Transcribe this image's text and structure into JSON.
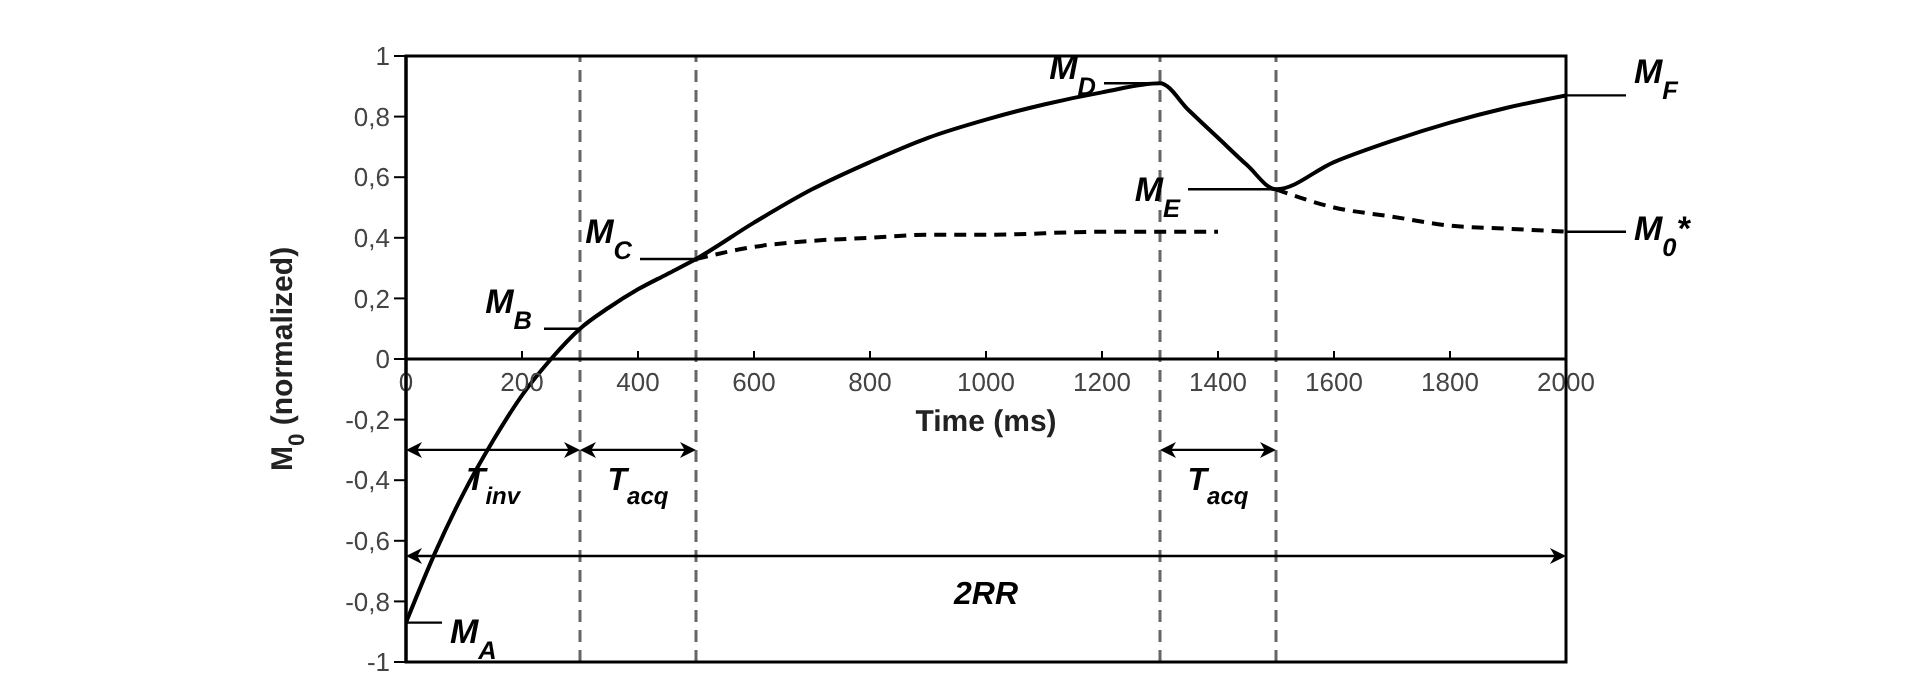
{
  "chart_data": {
    "type": "line",
    "xlabel": "Time (ms)",
    "ylabel": "M$_{0}$ (normalized)",
    "xlim": [
      0,
      2000
    ],
    "ylim": [
      -1,
      1
    ],
    "xticks": [
      0,
      200,
      400,
      600,
      800,
      1000,
      1200,
      1400,
      1600,
      1800,
      2000
    ],
    "yticks": [
      {
        "value": -1,
        "label": "-1"
      },
      {
        "value": -0.8,
        "label": "-0,8"
      },
      {
        "value": -0.6,
        "label": "-0,6"
      },
      {
        "value": -0.4,
        "label": "-0,4"
      },
      {
        "value": -0.2,
        "label": "-0,2"
      },
      {
        "value": 0,
        "label": "0"
      },
      {
        "value": 0.2,
        "label": "0,2"
      },
      {
        "value": 0.4,
        "label": "0,4"
      },
      {
        "value": 0.6,
        "label": "0,6"
      },
      {
        "value": 0.8,
        "label": "0,8"
      },
      {
        "value": 1,
        "label": "1"
      }
    ],
    "marker": "none",
    "series": [
      {
        "color": "#000000",
        "line_style": "solid",
        "x": [
          0,
          50,
          100,
          150,
          200,
          250,
          300,
          350,
          400,
          450,
          500,
          600,
          700,
          800,
          900,
          1000,
          1100,
          1200,
          1300,
          1350,
          1400,
          1450,
          1500,
          1600,
          1700,
          1800,
          1900,
          2000
        ],
        "values": [
          -0.87,
          -0.64,
          -0.44,
          -0.27,
          -0.12,
          0.0,
          0.1,
          0.17,
          0.23,
          0.28,
          0.33,
          0.45,
          0.56,
          0.65,
          0.73,
          0.79,
          0.84,
          0.88,
          0.91,
          0.82,
          0.73,
          0.64,
          0.56,
          0.65,
          0.72,
          0.78,
          0.83,
          0.87
        ]
      },
      {
        "color": "#000000",
        "line_style": "dashed",
        "x": [
          500,
          600,
          700,
          800,
          900,
          1000,
          1200,
          1400
        ],
        "values": [
          0.33,
          0.37,
          0.39,
          0.4,
          0.41,
          0.41,
          0.42,
          0.42
        ]
      },
      {
        "color": "#000000",
        "line_style": "dashed",
        "x": [
          1500,
          1600,
          1700,
          1800,
          1900,
          2000
        ],
        "values": [
          0.56,
          0.5,
          0.47,
          0.44,
          0.43,
          0.42
        ]
      }
    ],
    "ref_lines": [
      {
        "axis": "x",
        "value": 300,
        "color": "#666666",
        "line_style": "dashed"
      },
      {
        "axis": "x",
        "value": 500,
        "color": "#666666",
        "line_style": "dashed"
      },
      {
        "axis": "x",
        "value": 1300,
        "color": "#666666",
        "line_style": "dashed"
      },
      {
        "axis": "x",
        "value": 1500,
        "color": "#666666",
        "line_style": "dashed"
      }
    ],
    "annotations": [
      {
        "text": "M$_{A}$",
        "x": 0,
        "y": -0.87
      },
      {
        "text": "M$_{B}$",
        "x": 300,
        "y": 0.1
      },
      {
        "text": "M$_{C}$",
        "x": 500,
        "y": 0.33
      },
      {
        "text": "M$_{D}$",
        "x": 1300,
        "y": 0.91
      },
      {
        "text": "M$_{E}$",
        "x": 1500,
        "y": 0.56
      },
      {
        "text": "M$_{F}$",
        "x": 2000,
        "y": 0.87
      },
      {
        "text": "M$_{0}$*",
        "x": 2000,
        "y": 0.42
      },
      "T$_{inv}$",
      "T$_{acq}$",
      "T$_{acq}$",
      "2RR"
    ]
  }
}
